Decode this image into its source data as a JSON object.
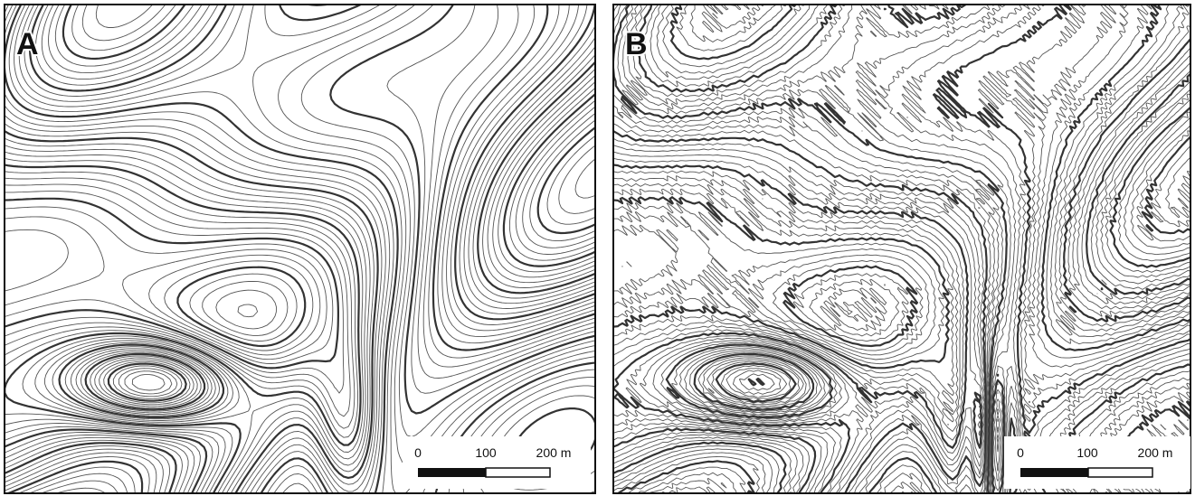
{
  "panels": [
    {
      "label": "A",
      "scale_bar": {
        "labels": [
          "0",
          "100",
          "200 m"
        ]
      }
    },
    {
      "label": "B",
      "scale_bar": {
        "labels": [
          "0",
          "100",
          "200 m"
        ]
      }
    }
  ]
}
